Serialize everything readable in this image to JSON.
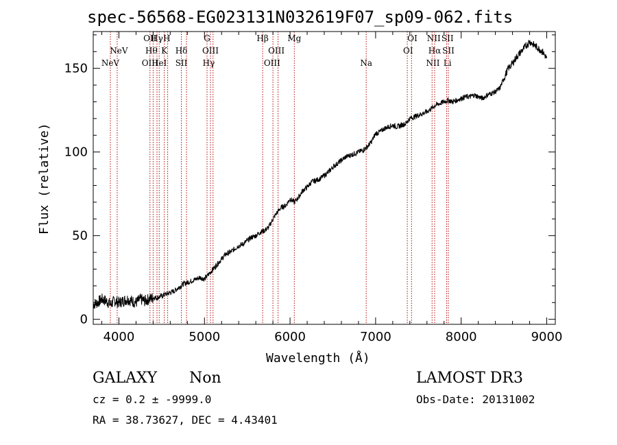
{
  "chart_data": {
    "type": "line",
    "title": "spec-56568-EG023131N032619F07_sp09-062.fits",
    "xlabel": "Wavelength (Å)",
    "ylabel": "Flux (relative)",
    "xlim": [
      3700,
      9100
    ],
    "ylim": [
      -3,
      172
    ],
    "xticks": [
      4000,
      5000,
      6000,
      7000,
      8000,
      9000
    ],
    "yticks": [
      0,
      50,
      100,
      150
    ],
    "grid": false,
    "series": [
      {
        "name": "spectrum",
        "x": [
          3700,
          3750,
          3800,
          3850,
          3900,
          3950,
          4000,
          4050,
          4100,
          4150,
          4200,
          4250,
          4300,
          4350,
          4400,
          4450,
          4500,
          4550,
          4600,
          4650,
          4700,
          4750,
          4800,
          4850,
          4900,
          4950,
          5000,
          5050,
          5100,
          5150,
          5200,
          5250,
          5300,
          5350,
          5400,
          5450,
          5500,
          5550,
          5600,
          5650,
          5700,
          5750,
          5800,
          5850,
          5900,
          5950,
          6000,
          6050,
          6100,
          6150,
          6200,
          6250,
          6300,
          6350,
          6400,
          6450,
          6500,
          6550,
          6600,
          6650,
          6700,
          6750,
          6800,
          6850,
          6900,
          6950,
          7000,
          7050,
          7100,
          7150,
          7200,
          7250,
          7300,
          7350,
          7400,
          7450,
          7500,
          7550,
          7600,
          7650,
          7700,
          7750,
          7800,
          7850,
          7900,
          7950,
          8000,
          8050,
          8100,
          8150,
          8200,
          8250,
          8300,
          8350,
          8400,
          8450,
          8500,
          8550,
          8600,
          8650,
          8700,
          8750,
          8800,
          8850,
          8900,
          8950,
          9000
        ],
        "y": [
          9,
          10,
          12,
          11,
          9,
          11,
          10,
          11,
          12,
          11,
          10,
          12,
          11,
          12,
          13,
          13,
          14,
          15,
          16,
          17,
          19,
          21,
          22,
          23,
          24,
          25,
          24,
          27,
          30,
          33,
          36,
          39,
          40,
          42,
          44,
          45,
          47,
          49,
          50,
          52,
          53,
          55,
          60,
          64,
          67,
          68,
          72,
          70,
          73,
          77,
          79,
          82,
          83,
          84,
          86,
          88,
          91,
          93,
          95,
          97,
          98,
          99,
          100,
          101,
          103,
          106,
          111,
          112,
          114,
          115,
          116,
          115,
          116,
          117,
          120,
          121,
          122,
          123,
          124,
          126,
          128,
          129,
          130,
          131,
          130,
          131,
          132,
          133,
          133,
          134,
          133,
          132,
          134,
          135,
          136,
          138,
          144,
          150,
          153,
          157,
          160,
          163,
          166,
          164,
          162,
          160,
          156
        ]
      }
    ],
    "lines": [
      {
        "label": "NeV",
        "x": 3900,
        "row": 3
      },
      {
        "label": "NeV",
        "x": 4000,
        "row": 2
      },
      {
        "label": "OII",
        "x": 4363,
        "row": 1
      },
      {
        "label": "OIII",
        "x": 4363,
        "row": 3
      },
      {
        "label": "Hγ",
        "x": 4445,
        "row": 1
      },
      {
        "label": "Hθ",
        "x": 4380,
        "row": 2
      },
      {
        "label": "HeI",
        "x": 4471,
        "row": 3
      },
      {
        "label": "H",
        "x": 4560,
        "row": 1
      },
      {
        "label": "K",
        "x": 4530,
        "row": 2
      },
      {
        "label": "Hδ",
        "x": 4730,
        "row": 2
      },
      {
        "label": "SII",
        "x": 4730,
        "row": 3
      },
      {
        "label": "G",
        "x": 5030,
        "row": 1
      },
      {
        "label": "OIII",
        "x": 5070,
        "row": 2
      },
      {
        "label": "Hγ",
        "x": 5050,
        "row": 3
      },
      {
        "label": "Hβ",
        "x": 5680,
        "row": 1
      },
      {
        "label": "OIII",
        "x": 5840,
        "row": 2
      },
      {
        "label": "OIII",
        "x": 5790,
        "row": 3
      },
      {
        "label": "Mg",
        "x": 6050,
        "row": 1
      },
      {
        "label": "Na",
        "x": 6890,
        "row": 3
      },
      {
        "label": "OI",
        "x": 7430,
        "row": 1
      },
      {
        "label": "OI",
        "x": 7380,
        "row": 2
      },
      {
        "label": "NII",
        "x": 7680,
        "row": 1
      },
      {
        "label": "Hα",
        "x": 7690,
        "row": 2
      },
      {
        "label": "NII",
        "x": 7670,
        "row": 3
      },
      {
        "label": "SII",
        "x": 7840,
        "row": 1
      },
      {
        "label": "SII",
        "x": 7850,
        "row": 2
      },
      {
        "label": "Li",
        "x": 7840,
        "row": 3
      }
    ],
    "line_positions": [
      3900,
      3980,
      4363,
      4400,
      4445,
      4471,
      4530,
      4570,
      4730,
      4790,
      5030,
      5070,
      5100,
      5680,
      5800,
      5860,
      6050,
      6890,
      7370,
      7420,
      7660,
      7690,
      7830,
      7850
    ]
  },
  "footer": {
    "object_class": "GALAXY",
    "subclass": "Non",
    "survey": "LAMOST DR3",
    "cz_line": "cz = 0.2 ± -9999.0",
    "obs_date": "Obs-Date: 20131002",
    "coords": "RA =  38.73627, DEC =   4.43401"
  },
  "colors": {
    "spectrum": "#000000",
    "line_marker": "#b00000"
  }
}
